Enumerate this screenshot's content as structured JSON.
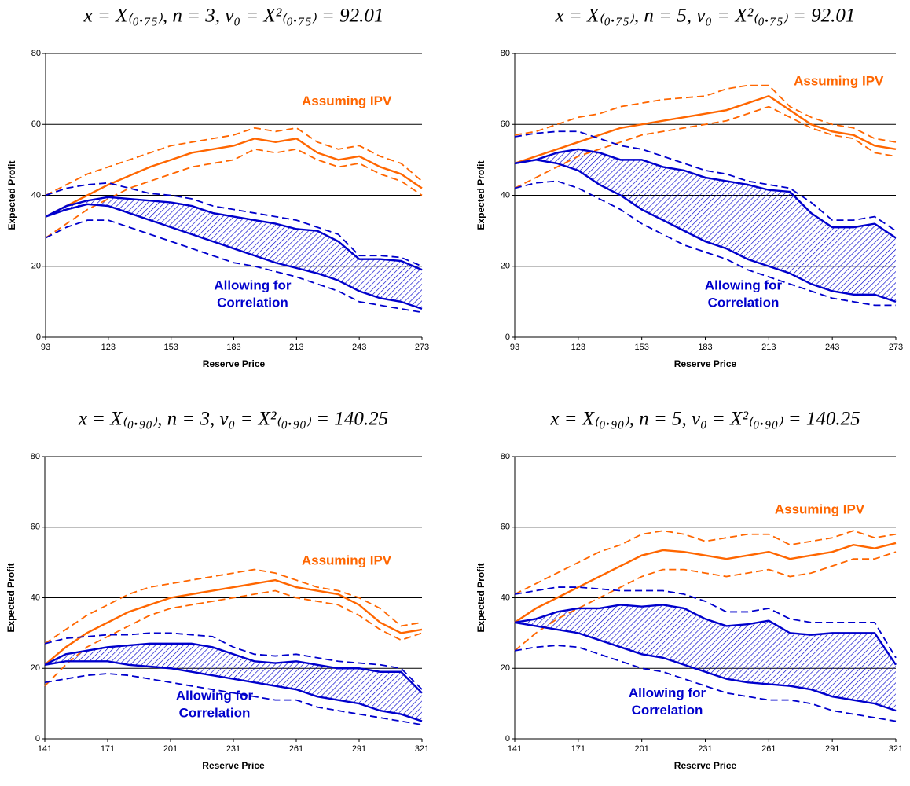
{
  "chart_data": [
    {
      "type": "line",
      "title": "x = X₍₀.₇₅₎, n = 3, v₀ = X²₍₀.₇₅₎ = 92.01",
      "xlabel": "Reserve Price",
      "ylabel": "Expected Profit",
      "x": [
        93,
        103,
        113,
        123,
        133,
        143,
        153,
        163,
        173,
        183,
        193,
        203,
        213,
        223,
        233,
        243,
        253,
        263,
        273
      ],
      "xlim": [
        93,
        273
      ],
      "xticks": [
        93,
        123,
        153,
        183,
        213,
        243,
        273
      ],
      "ylim": [
        0,
        80
      ],
      "yticks": [
        0,
        20,
        40,
        60,
        80
      ],
      "grid": true,
      "band_color": "#0000cc",
      "annotations": [
        {
          "lines": [
            "Assuming IPV"
          ],
          "color": "#ff6600"
        },
        {
          "lines": [
            "Allowing for",
            "Correlation"
          ],
          "color": "#0000cc"
        }
      ],
      "series": [
        {
          "color": "#ff6600",
          "style": "solid",
          "values": [
            34,
            37,
            40,
            43,
            45.5,
            48,
            50,
            52,
            53,
            54,
            56,
            55,
            56,
            52,
            50,
            51,
            48,
            46,
            42
          ]
        },
        {
          "color": "#ff6600",
          "style": "dashed",
          "values": [
            40,
            43,
            46,
            48,
            50,
            52,
            54,
            55,
            56,
            57,
            59,
            58,
            59,
            55,
            53,
            54,
            51,
            49,
            44
          ]
        },
        {
          "color": "#ff6600",
          "style": "dashed",
          "values": [
            28,
            32,
            36,
            39,
            42,
            44,
            46,
            48,
            49,
            50,
            53,
            52,
            53,
            50,
            48,
            49,
            46,
            44,
            40
          ]
        },
        {
          "color": "#0000cc",
          "style": "solid",
          "values": [
            34,
            37,
            38.5,
            39.5,
            39,
            38.5,
            38,
            37,
            35,
            34,
            33,
            32,
            30.5,
            30,
            27,
            22,
            22,
            21.5,
            19
          ]
        },
        {
          "color": "#0000cc",
          "style": "solid",
          "values": [
            34,
            36,
            37.5,
            37,
            35,
            33,
            31,
            29,
            27,
            25,
            23,
            21,
            19.5,
            18,
            16,
            13,
            11,
            10,
            8
          ]
        },
        {
          "color": "#0000cc",
          "style": "dashed",
          "values": [
            40,
            42,
            43,
            43.5,
            42,
            40.5,
            40,
            39,
            37,
            36,
            35,
            34,
            33,
            31,
            29,
            23,
            23,
            22.5,
            20
          ]
        },
        {
          "color": "#0000cc",
          "style": "dashed",
          "values": [
            28,
            31,
            33,
            33,
            31,
            29,
            27,
            25,
            23,
            21,
            20,
            18.5,
            17,
            15,
            13,
            10,
            9,
            8,
            7
          ]
        }
      ]
    },
    {
      "type": "line",
      "title": "x = X₍₀.₇₅₎, n = 5, v₀ = X²₍₀.₇₅₎ = 92.01",
      "xlabel": "Reserve Price",
      "ylabel": "Expected Profit",
      "x": [
        93,
        103,
        113,
        123,
        133,
        143,
        153,
        163,
        173,
        183,
        193,
        203,
        213,
        223,
        233,
        243,
        253,
        263,
        273
      ],
      "xlim": [
        93,
        273
      ],
      "xticks": [
        93,
        123,
        153,
        183,
        213,
        243,
        273
      ],
      "ylim": [
        0,
        80
      ],
      "yticks": [
        0,
        20,
        40,
        60,
        80
      ],
      "grid": true,
      "band_color": "#0000cc",
      "annotations": [
        {
          "lines": [
            "Assuming IPV"
          ],
          "color": "#ff6600"
        },
        {
          "lines": [
            "Allowing for",
            "Correlation"
          ],
          "color": "#0000cc"
        }
      ],
      "series": [
        {
          "color": "#ff6600",
          "style": "solid",
          "values": [
            49,
            51,
            53,
            55,
            57,
            59,
            60,
            61,
            62,
            63,
            64,
            66,
            68,
            64,
            60,
            58,
            57,
            54,
            53
          ]
        },
        {
          "color": "#ff6600",
          "style": "dashed",
          "values": [
            57,
            58,
            60,
            62,
            63,
            65,
            66,
            67,
            67.5,
            68,
            70,
            71,
            71,
            65,
            62,
            60,
            59,
            56,
            55
          ]
        },
        {
          "color": "#ff6600",
          "style": "dashed",
          "values": [
            42,
            45,
            48,
            51,
            53,
            55,
            57,
            58,
            59,
            60,
            61,
            63,
            65,
            62,
            59,
            57,
            56,
            52,
            51
          ]
        },
        {
          "color": "#0000cc",
          "style": "solid",
          "values": [
            49,
            50,
            52,
            53,
            52,
            50,
            50,
            48,
            47,
            45,
            44,
            43,
            41.5,
            41,
            35,
            31,
            31,
            32,
            28
          ]
        },
        {
          "color": "#0000cc",
          "style": "solid",
          "values": [
            49,
            50,
            49,
            47,
            43,
            40,
            36,
            33,
            30,
            27,
            25,
            22,
            20,
            18,
            15,
            13,
            12,
            12,
            10
          ]
        },
        {
          "color": "#0000cc",
          "style": "dashed",
          "values": [
            56.5,
            57.5,
            58,
            58,
            56,
            54,
            53,
            51,
            49,
            47,
            46,
            44,
            43,
            42,
            38,
            33,
            33,
            34,
            30
          ]
        },
        {
          "color": "#0000cc",
          "style": "dashed",
          "values": [
            42,
            43.5,
            44,
            42,
            39,
            36,
            32,
            29,
            26,
            24,
            22,
            19,
            17,
            15,
            13,
            11,
            10,
            9,
            9
          ]
        }
      ]
    },
    {
      "type": "line",
      "title": "x = X₍₀.₉₀₎, n = 3, v₀ = X²₍₀.₉₀₎ = 140.25",
      "xlabel": "Reserve Price",
      "ylabel": "Expected Profit",
      "x": [
        141,
        151,
        161,
        171,
        181,
        191,
        201,
        211,
        221,
        231,
        241,
        251,
        261,
        271,
        281,
        291,
        301,
        311,
        321
      ],
      "xlim": [
        141,
        321
      ],
      "xticks": [
        141,
        171,
        201,
        231,
        261,
        291,
        321
      ],
      "ylim": [
        0,
        80
      ],
      "yticks": [
        0,
        20,
        40,
        60,
        80
      ],
      "grid": true,
      "band_color": "#0000cc",
      "annotations": [
        {
          "lines": [
            "Assuming IPV"
          ],
          "color": "#ff6600"
        },
        {
          "lines": [
            "Allowing for",
            "Correlation"
          ],
          "color": "#0000cc"
        }
      ],
      "series": [
        {
          "color": "#ff6600",
          "style": "solid",
          "values": [
            21,
            26,
            30,
            33,
            36,
            38,
            40,
            41,
            42,
            43,
            44,
            45,
            43,
            42,
            41,
            38,
            33,
            30,
            31
          ]
        },
        {
          "color": "#ff6600",
          "style": "dashed",
          "values": [
            27,
            31,
            35,
            38,
            41,
            43,
            44,
            45,
            46,
            47,
            48,
            47,
            45,
            43,
            42,
            40,
            37,
            32,
            33
          ]
        },
        {
          "color": "#ff6600",
          "style": "dashed",
          "values": [
            15,
            21,
            26,
            29,
            32,
            35,
            37,
            38,
            39,
            40,
            41,
            42,
            40,
            39,
            38,
            35,
            31,
            28,
            30
          ]
        },
        {
          "color": "#0000cc",
          "style": "solid",
          "values": [
            21,
            24,
            25,
            26,
            26.5,
            27,
            27,
            27,
            26,
            24,
            22,
            21.5,
            22,
            21,
            20,
            20,
            19,
            19,
            13
          ]
        },
        {
          "color": "#0000cc",
          "style": "solid",
          "values": [
            21,
            22,
            22,
            22,
            21,
            20.5,
            20,
            19,
            18,
            17,
            16,
            15,
            14,
            12,
            11,
            10,
            8,
            7,
            5
          ]
        },
        {
          "color": "#0000cc",
          "style": "dashed",
          "values": [
            27,
            28.5,
            29,
            29.5,
            29.5,
            30,
            30,
            29.5,
            29,
            26,
            24,
            23.5,
            24,
            23,
            22,
            21.5,
            21,
            20,
            14
          ]
        },
        {
          "color": "#0000cc",
          "style": "dashed",
          "values": [
            16,
            17,
            18,
            18.5,
            18,
            17,
            16,
            15,
            14,
            13,
            12,
            11,
            11,
            9,
            8,
            7,
            6,
            5,
            4
          ]
        }
      ]
    },
    {
      "type": "line",
      "title": "x = X₍₀.₉₀₎, n = 5, v₀ = X²₍₀.₉₀₎ = 140.25",
      "xlabel": "Reserve Price",
      "ylabel": "Expected Profit",
      "x": [
        141,
        151,
        161,
        171,
        181,
        191,
        201,
        211,
        221,
        231,
        241,
        251,
        261,
        271,
        281,
        291,
        301,
        311,
        321
      ],
      "xlim": [
        141,
        321
      ],
      "xticks": [
        141,
        171,
        201,
        231,
        261,
        291,
        321
      ],
      "ylim": [
        0,
        80
      ],
      "yticks": [
        0,
        20,
        40,
        60,
        80
      ],
      "grid": true,
      "band_color": "#0000cc",
      "annotations": [
        {
          "lines": [
            "Assuming IPV"
          ],
          "color": "#ff6600"
        },
        {
          "lines": [
            "Allowing for",
            "Correlation"
          ],
          "color": "#0000cc"
        }
      ],
      "series": [
        {
          "color": "#ff6600",
          "style": "solid",
          "values": [
            33,
            37,
            40,
            43,
            46,
            49,
            52,
            53.5,
            53,
            52,
            51,
            52,
            53,
            51,
            52,
            53,
            55,
            54,
            55.5
          ]
        },
        {
          "color": "#ff6600",
          "style": "dashed",
          "values": [
            41,
            44,
            47,
            50,
            53,
            55,
            58,
            59,
            58,
            56,
            57,
            58,
            58,
            55,
            56,
            57,
            59,
            57,
            58
          ]
        },
        {
          "color": "#ff6600",
          "style": "dashed",
          "values": [
            25,
            30,
            34,
            37,
            40,
            43,
            46,
            48,
            48,
            47,
            46,
            47,
            48,
            46,
            47,
            49,
            51,
            51,
            53
          ]
        },
        {
          "color": "#0000cc",
          "style": "solid",
          "values": [
            33,
            34,
            36,
            37,
            37,
            38,
            37.5,
            38,
            37,
            34,
            32,
            32.5,
            33.5,
            30,
            29.5,
            30,
            30,
            30,
            21
          ]
        },
        {
          "color": "#0000cc",
          "style": "solid",
          "values": [
            33,
            32,
            31,
            30,
            28,
            26,
            24,
            23,
            21,
            19,
            17,
            16,
            15.5,
            15,
            14,
            12,
            11,
            10,
            8
          ]
        },
        {
          "color": "#0000cc",
          "style": "dashed",
          "values": [
            41,
            42,
            43,
            43,
            42.5,
            42,
            42,
            42,
            41,
            39,
            36,
            36,
            37,
            34,
            33,
            33,
            33,
            33,
            23
          ]
        },
        {
          "color": "#0000cc",
          "style": "dashed",
          "values": [
            25,
            26,
            26.5,
            26,
            24,
            22,
            20,
            19,
            17,
            15,
            13,
            12,
            11,
            11,
            10,
            8,
            7,
            6,
            5
          ]
        }
      ]
    }
  ]
}
